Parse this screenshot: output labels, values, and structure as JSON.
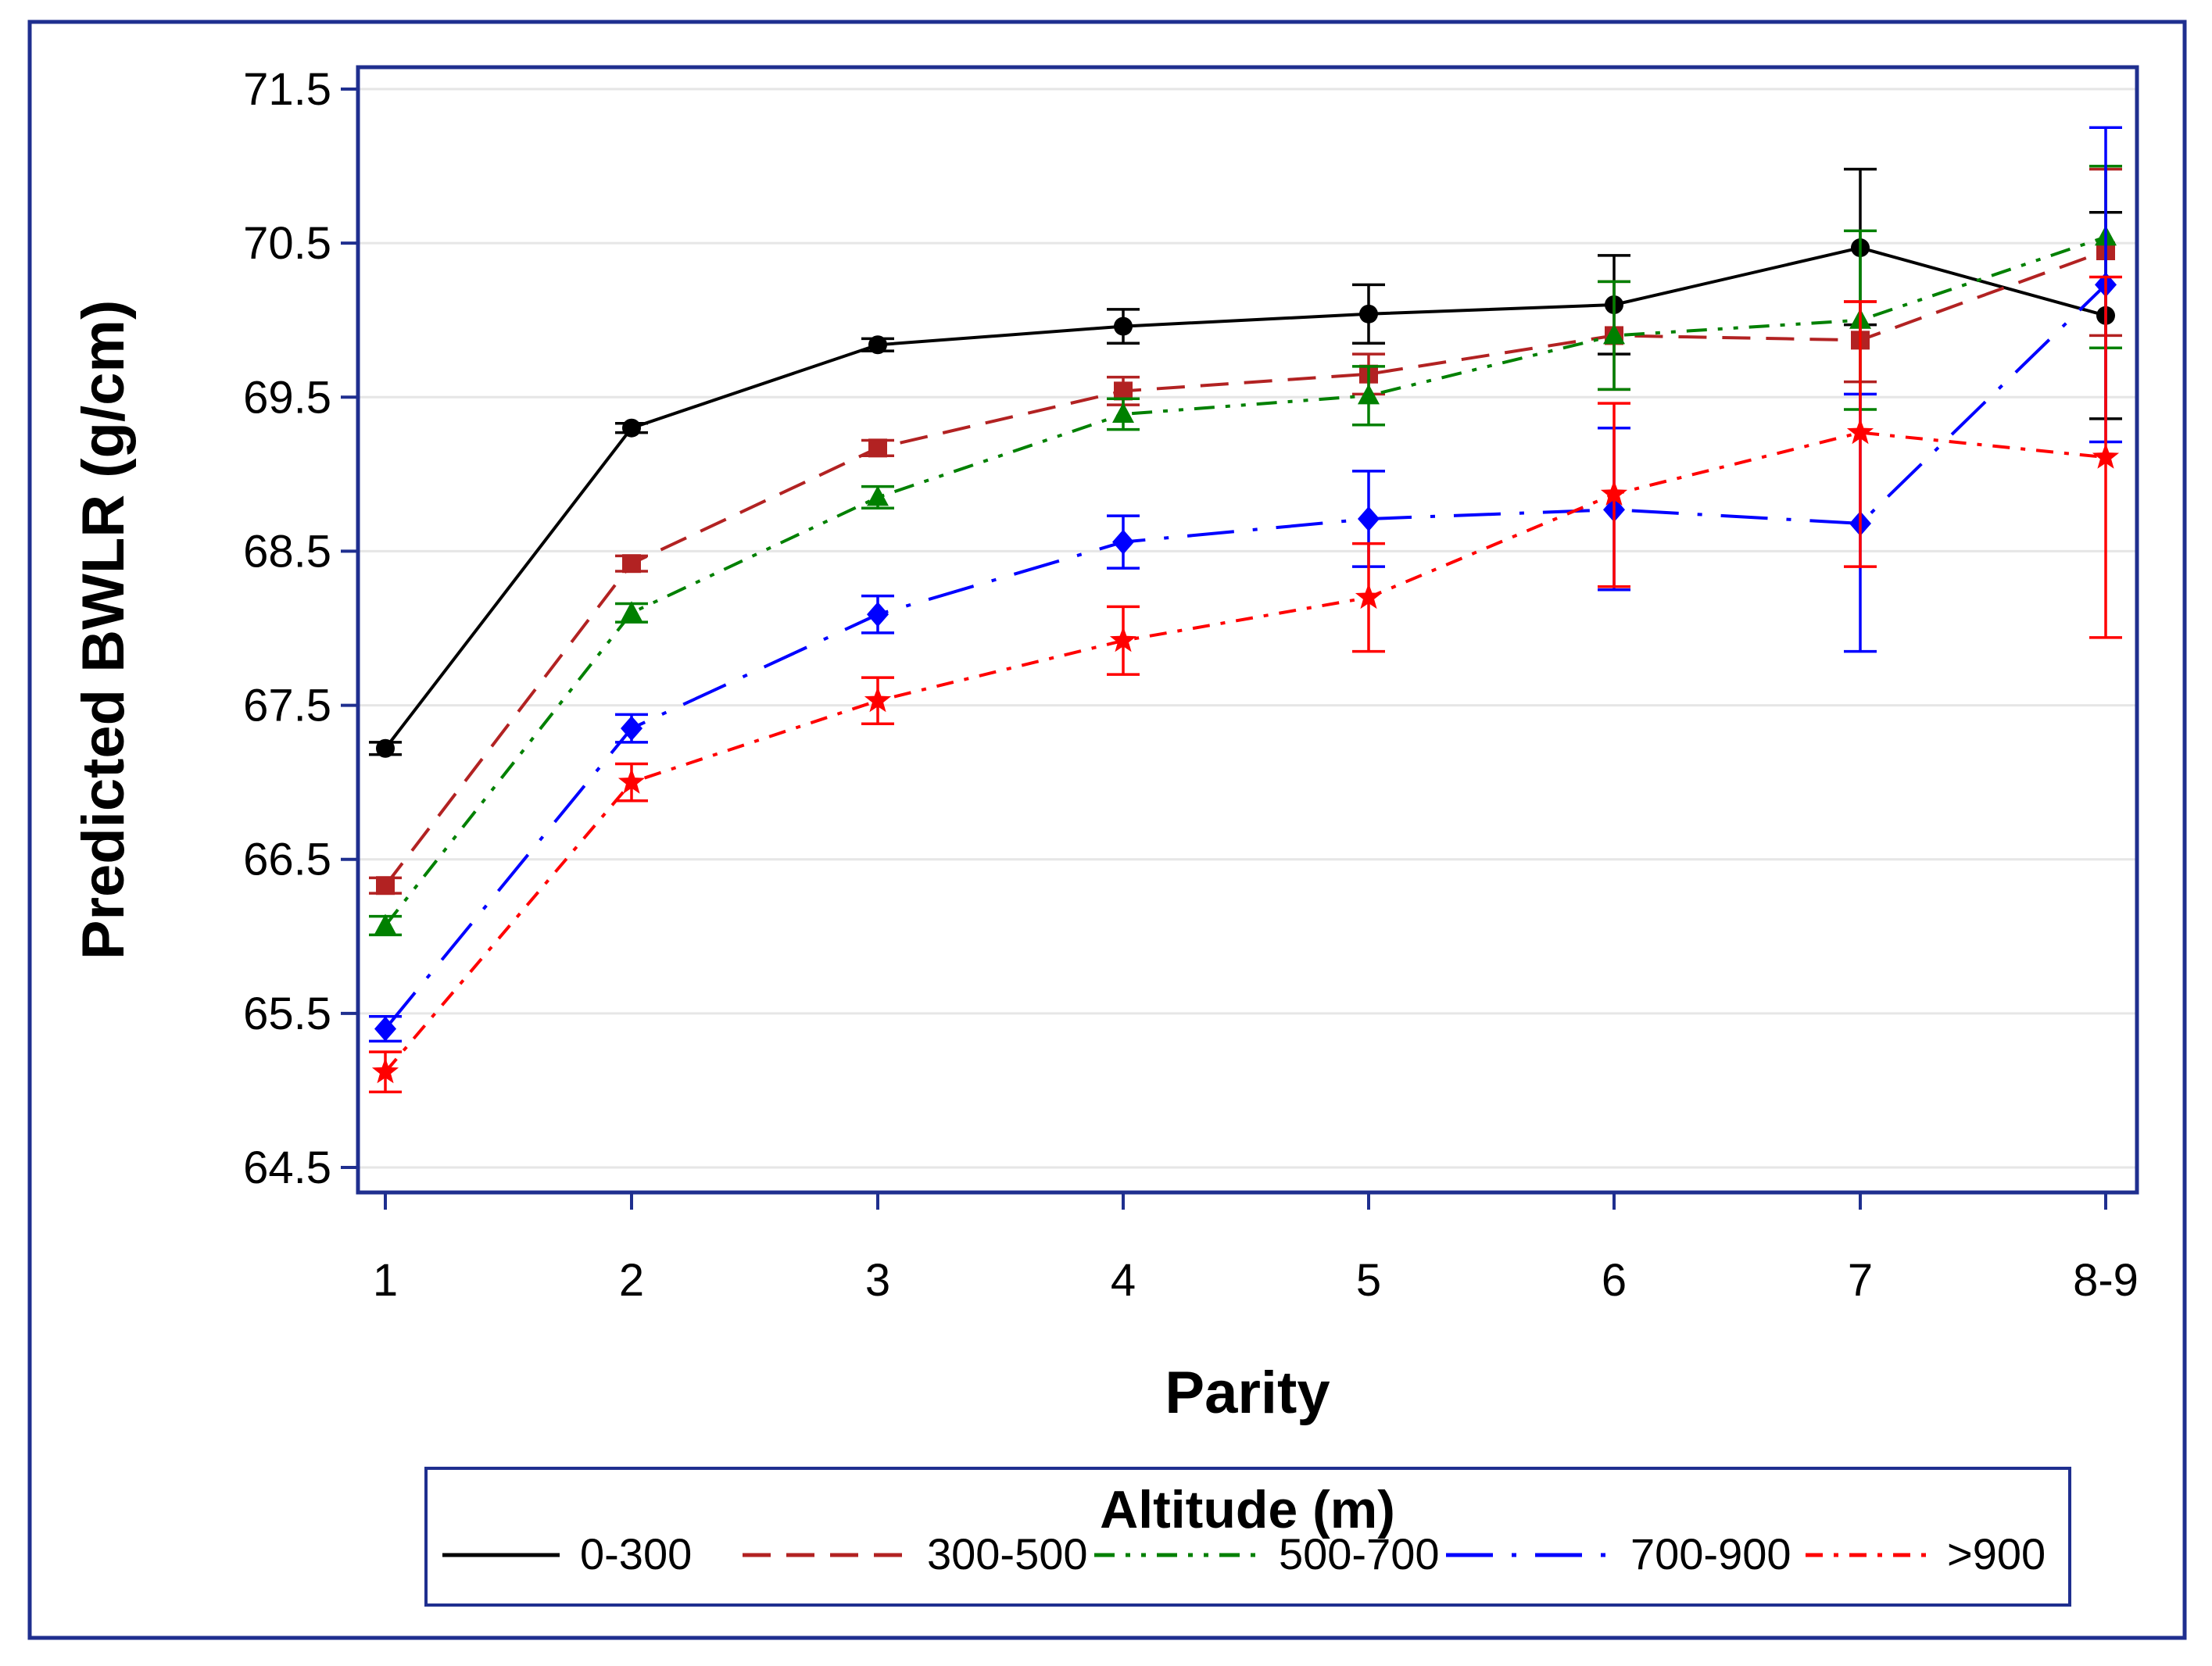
{
  "chart_data": {
    "type": "line",
    "xlabel": "Parity",
    "ylabel": "Predicted BWLR (g/cm)",
    "categories": [
      "1",
      "2",
      "3",
      "4",
      "5",
      "6",
      "7",
      "8-9"
    ],
    "ylim": [
      64.5,
      71.5
    ],
    "yticks": [
      "64.5",
      "65.5",
      "66.5",
      "67.5",
      "68.5",
      "69.5",
      "70.5",
      "71.5"
    ],
    "grid": "horizontal",
    "legend": {
      "title": "Altitude (m)",
      "position": "bottom"
    },
    "series": [
      {
        "name": "0-300",
        "color": "#000000",
        "marker": "circle",
        "dash": "solid",
        "values": [
          67.22,
          69.3,
          69.84,
          69.96,
          70.04,
          70.1,
          70.47,
          70.03
        ],
        "lower": [
          67.18,
          69.27,
          69.8,
          69.85,
          69.85,
          69.78,
          69.97,
          69.36
        ],
        "upper": [
          67.26,
          69.33,
          69.88,
          70.07,
          70.23,
          70.42,
          70.98,
          70.7
        ]
      },
      {
        "name": "300-500",
        "color": "#B22222",
        "marker": "square",
        "dash": "long-dash",
        "values": [
          66.33,
          68.42,
          69.17,
          69.54,
          69.65,
          69.9,
          69.87,
          70.45
        ],
        "lower": [
          66.28,
          68.37,
          69.12,
          69.45,
          69.52,
          69.55,
          69.6,
          69.9
        ],
        "upper": [
          66.38,
          68.47,
          69.22,
          69.63,
          69.78,
          70.25,
          70.12,
          70.98
        ]
      },
      {
        "name": "500-700",
        "color": "#008000",
        "marker": "triangle",
        "dash": "dash-dot-dot",
        "values": [
          66.07,
          68.1,
          68.85,
          69.39,
          69.51,
          69.9,
          70.0,
          70.54
        ],
        "lower": [
          66.01,
          68.04,
          68.78,
          69.29,
          69.32,
          69.55,
          69.42,
          69.82
        ],
        "upper": [
          66.13,
          68.16,
          68.92,
          69.49,
          69.7,
          70.25,
          70.58,
          71.0
        ]
      },
      {
        "name": "700-900",
        "color": "#0000FF",
        "marker": "diamond",
        "dash": "long-dash-dot",
        "values": [
          65.4,
          67.35,
          68.09,
          68.56,
          68.71,
          68.77,
          68.68,
          70.23
        ],
        "lower": [
          65.32,
          67.26,
          67.97,
          68.39,
          68.4,
          68.25,
          67.85,
          69.21
        ],
        "upper": [
          65.48,
          67.44,
          68.21,
          68.73,
          69.02,
          69.3,
          69.52,
          71.25
        ]
      },
      {
        "name": ">900",
        "color": "#FF0000",
        "marker": "star",
        "dash": "dash-dot",
        "values": [
          65.12,
          67.0,
          67.53,
          67.92,
          68.2,
          68.87,
          69.27,
          69.11
        ],
        "lower": [
          64.99,
          66.88,
          67.38,
          67.7,
          67.85,
          68.27,
          68.4,
          67.94
        ],
        "upper": [
          65.25,
          67.12,
          67.68,
          68.14,
          68.55,
          69.46,
          70.12,
          70.28
        ]
      }
    ]
  }
}
